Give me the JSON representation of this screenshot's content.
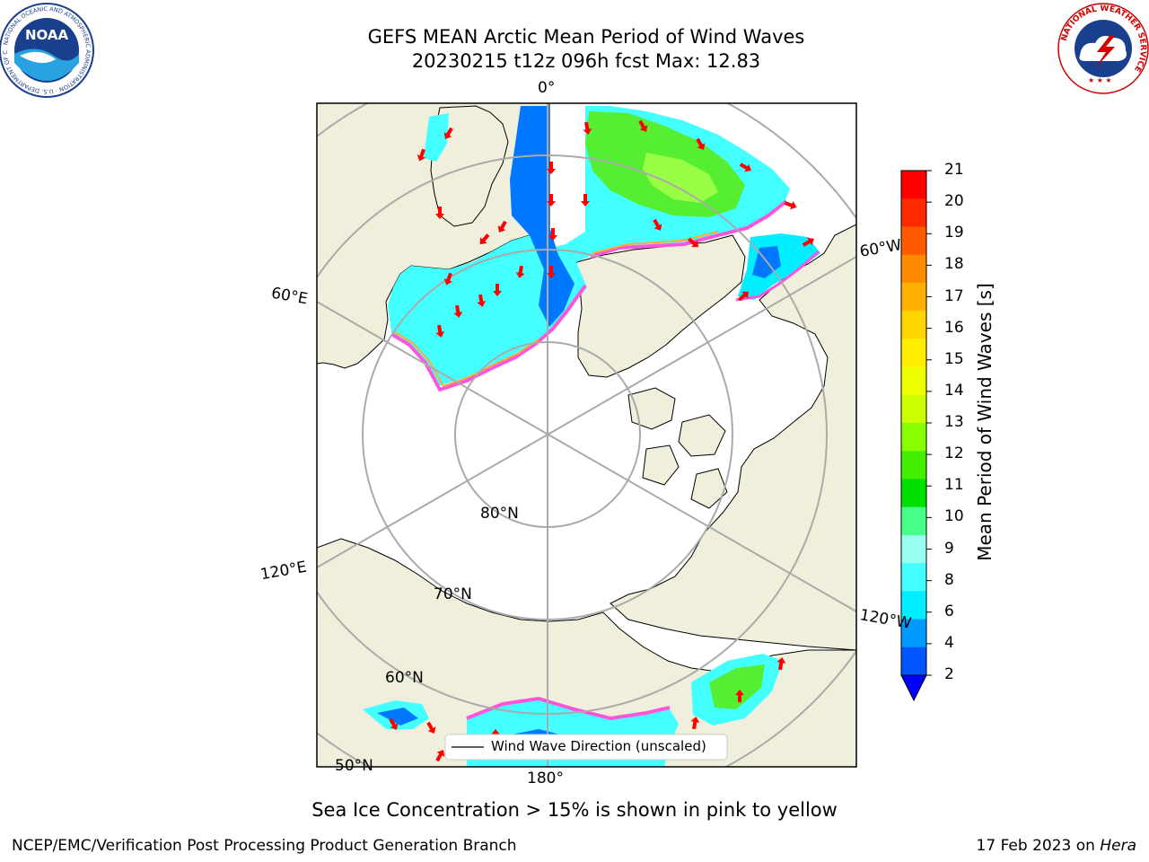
{
  "header": {
    "title_line1": "GEFS MEAN Arctic Mean Period of Wind Waves",
    "title_line2": "20230215 t12z 096h fcst   Max: 12.83"
  },
  "map": {
    "projection": "north-polar-stereographic",
    "lon_labels": [
      "0°",
      "60°W",
      "60°E",
      "120°E",
      "120°W",
      "180°"
    ],
    "lat_labels": [
      "80°N",
      "70°N",
      "60°N",
      "50°N"
    ],
    "legend_label": "Wind Wave Direction (unscaled)",
    "arrow_color": "#ff0000",
    "land_color": "#efefdc",
    "ice_color": "#ffffff"
  },
  "colorbar": {
    "label": "Mean Period of Wind Waves [s]",
    "ticks": [
      "21",
      "20",
      "19",
      "18",
      "17",
      "16",
      "15",
      "14",
      "13",
      "12",
      "11",
      "10",
      "9",
      "8",
      "6",
      "4",
      "2"
    ],
    "colors": [
      "#ff0000",
      "#ff2a00",
      "#ff5a00",
      "#ff8a00",
      "#ffb000",
      "#ffd500",
      "#ffee00",
      "#eeff00",
      "#ccff00",
      "#88ff00",
      "#44ee00",
      "#00e000",
      "#44ff88",
      "#99ffee",
      "#44ffff",
      "#00eeff",
      "#0099ff",
      "#0055ff"
    ],
    "extend_color": "#0000ff"
  },
  "caption": "Sea Ice Concentration > 15% is shown in pink to yellow",
  "footer": {
    "left": "NCEP/EMC/Verification Post Processing Product Generation Branch",
    "right_prefix": "17 Feb 2023 on ",
    "right_host": "Hera"
  },
  "logos": {
    "noaa_text": "NOAA",
    "noaa_ring": "NATIONAL OCEANIC AND ATMOSPHERIC ADMINISTRATION · U.S. DEPARTMENT OF COMMERCE",
    "nws_ring": "NATIONAL WEATHER SERVICE"
  }
}
